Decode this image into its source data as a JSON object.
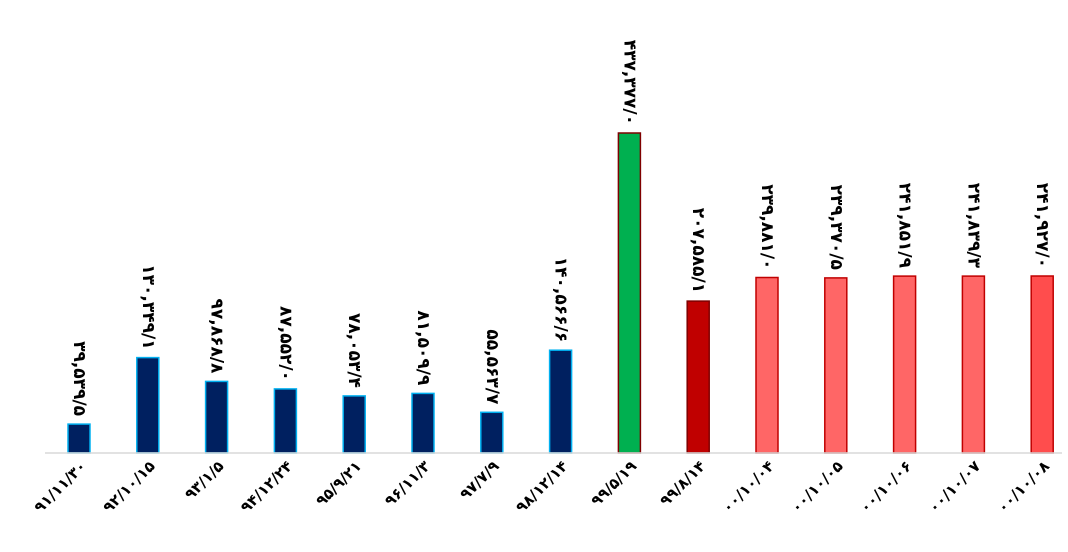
{
  "chart_data": {
    "type": "bar",
    "title": "",
    "xlabel": "",
    "ylabel": "",
    "ylim": [
      0,
      437377
    ],
    "grid": false,
    "legend": "none",
    "categories": [
      "۹۱/۱۱/۳۰",
      "۹۲/۱۰/۱۵",
      "۹۳/۱/۵",
      "۹۴/۱۲/۲۴",
      "۹۵/۹/۲۱",
      "۹۶/۱۱/۳",
      "۹۷/۷/۹",
      "۹۸/۱۲/۱۴",
      "۹۹/۵/۱۹",
      "۹۹/۸/۱۴",
      "۰۰/۱۰/۰۴",
      "۰۰/۱۰/۰۵",
      "۰۰/۱۰/۰۶",
      "۰۰/۱۰/۰۷",
      "۰۰/۱۰/۰۸"
    ],
    "values": [
      39539.5,
      130349.1,
      97868.8,
      87552.0,
      78053.4,
      81509.9,
      55563.7,
      140566.6,
      437377.0,
      207585.1,
      239881.0,
      239370.5,
      241851.9,
      241839.3,
      241927.0
    ],
    "value_labels": [
      "۳۹,۵۳۹/۵",
      "۱۳۰,۳۴۹/۱",
      "۹۷,۸۶۸/۸",
      "۸۷,۵۵۲/۰",
      "۷۸,۰۵۳/۴",
      "۸۱,۵۰۹/۹",
      "۵۵,۵۶۳/۷",
      "۱۴۰,۵۶۶/۶",
      "۴۳۷,۳۷۷/۰",
      "۲۰۷,۵۸۵/۱",
      "۲۳۹,۸۸۱/۰",
      "۲۳۹,۳۷۰/۵",
      "۲۴۱,۸۵۱/۹",
      "۲۴۱,۸۳۹/۳",
      "۲۴۱,۹۲۷/۰"
    ],
    "bar_colors": [
      "#002060",
      "#002060",
      "#002060",
      "#002060",
      "#002060",
      "#002060",
      "#002060",
      "#002060",
      "#00B050",
      "#C00000",
      "#FF6666",
      "#FF6666",
      "#FF6666",
      "#FF6666",
      "#FF4D4D"
    ],
    "bar_outline_colors": [
      "#00B0F0",
      "#00B0F0",
      "#00B0F0",
      "#00B0F0",
      "#00B0F0",
      "#00B0F0",
      "#00B0F0",
      "#00B0F0",
      "#7F0000",
      "#7F0000",
      "#C00000",
      "#C00000",
      "#C00000",
      "#C00000",
      "#C00000"
    ]
  }
}
